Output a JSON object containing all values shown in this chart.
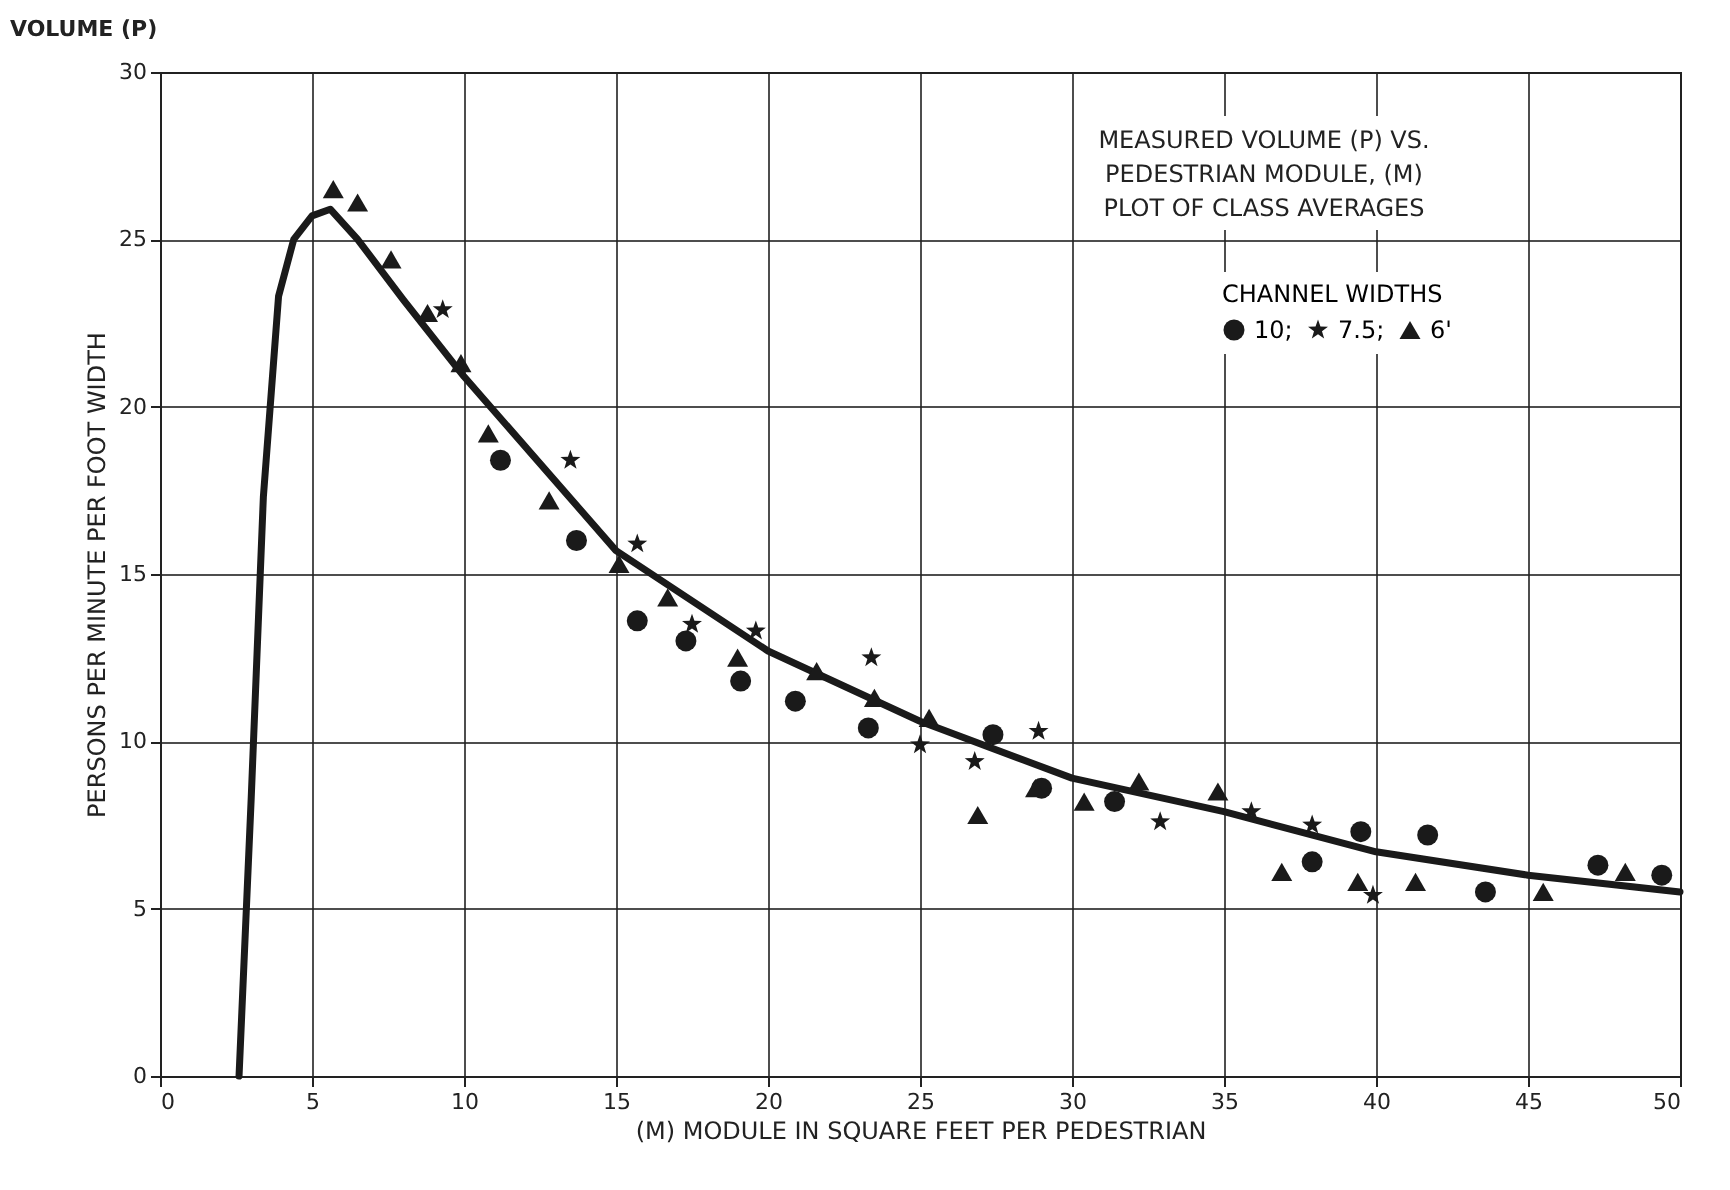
{
  "chart_data": {
    "type": "scatter",
    "title": "VOLUME (P)",
    "xlabel": "(M) MODULE IN SQUARE FEET PER PEDESTRIAN",
    "ylabel": "PERSONS PER MINUTE PER FOOT WIDTH",
    "annotations": [
      "MEASURED VOLUME (P) VS.",
      "PEDESTRIAN MODULE, (M)",
      "PLOT OF CLASS AVERAGES"
    ],
    "legend_title": "CHANNEL WIDTHS",
    "legend": "top right",
    "grid": true,
    "xlim": [
      0,
      50
    ],
    "xticks": [
      0,
      5,
      10,
      15,
      20,
      25,
      30,
      35,
      40,
      45,
      50
    ],
    "ylim": [
      0,
      30
    ],
    "yticks": [
      0,
      5,
      10,
      15,
      20,
      25,
      30
    ],
    "series": [
      {
        "name": "10;",
        "color": "#1a1a1a",
        "marker": "circle",
        "x": [
          11.2,
          13.7,
          15.7,
          17.3,
          19.1,
          20.9,
          23.3,
          27.4,
          29.0,
          31.4,
          37.9,
          39.5,
          41.7,
          43.6,
          47.3,
          49.4
        ],
        "values": [
          18.4,
          16.0,
          13.6,
          13.0,
          11.8,
          11.2,
          10.4,
          10.2,
          8.6,
          8.2,
          6.4,
          7.3,
          7.2,
          5.5,
          6.3,
          6.0
        ]
      },
      {
        "name": "7.5;",
        "color": "#1a1a1a",
        "marker": "star",
        "x": [
          9.3,
          13.5,
          15.7,
          17.5,
          19.6,
          23.4,
          25.0,
          26.8,
          28.9,
          32.9,
          35.9,
          37.9,
          39.9
        ],
        "values": [
          22.9,
          18.4,
          15.9,
          13.5,
          13.3,
          12.5,
          9.9,
          9.4,
          10.3,
          7.6,
          7.9,
          7.5,
          5.4
        ]
      },
      {
        "name": "6'",
        "color": "#1a1a1a",
        "marker": "triangle",
        "x": [
          5.7,
          6.5,
          7.6,
          8.8,
          9.9,
          10.8,
          12.8,
          15.1,
          16.7,
          19.0,
          21.6,
          23.5,
          25.3,
          26.9,
          28.8,
          30.4,
          32.2,
          34.8,
          36.9,
          39.4,
          41.3,
          45.5,
          48.2
        ],
        "values": [
          26.5,
          26.1,
          24.4,
          22.8,
          21.3,
          19.2,
          17.2,
          15.3,
          14.3,
          12.5,
          12.1,
          11.3,
          10.7,
          7.8,
          8.6,
          8.2,
          8.8,
          8.5,
          6.1,
          5.8,
          5.8,
          5.5,
          6.1
        ]
      },
      {
        "type": "line",
        "color": "#1a1a1a",
        "x": [
          2.6,
          3.0,
          3.4,
          3.9,
          4.4,
          5.0,
          5.6,
          6.5,
          8.0,
          10.0,
          15.0,
          20.0,
          25.0,
          30.0,
          35.0,
          40.0,
          45.0,
          50.0
        ],
        "values": [
          0,
          8.3,
          17.3,
          23.3,
          25.0,
          25.7,
          25.9,
          25.0,
          23.2,
          20.9,
          15.7,
          12.7,
          10.6,
          8.9,
          7.9,
          6.7,
          6.0,
          5.5
        ]
      }
    ]
  }
}
